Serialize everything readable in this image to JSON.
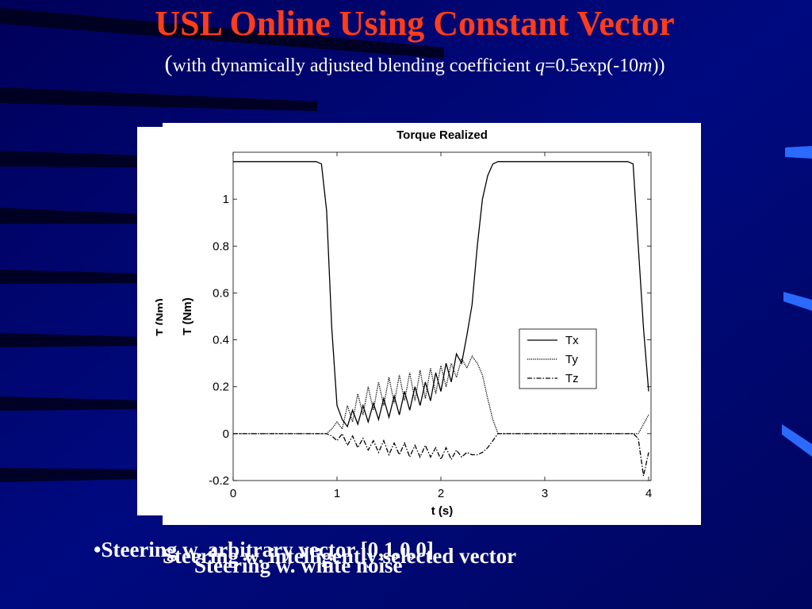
{
  "title": "USL Online Using Constant Vector",
  "subtitle": {
    "parts": [
      "(",
      "with dynamically adjusted blending coefficient ",
      "q",
      "=0.5exp(-10",
      "m",
      "))"
    ]
  },
  "bullets": [
    "•Steering w. arbitrary vector [0,1,0,0]",
    "Steering w. intelligently selected vector",
    "Steering w. white noise"
  ],
  "chart_data": {
    "type": "line",
    "title": "Torque Realized",
    "x_label": "t (s)",
    "y_label": "T (Nm)",
    "x": [
      0,
      0.5,
      0.8,
      0.85,
      0.9,
      0.95,
      1.0,
      1.05,
      1.1,
      1.15,
      1.2,
      1.25,
      1.3,
      1.35,
      1.4,
      1.45,
      1.5,
      1.55,
      1.6,
      1.65,
      1.7,
      1.75,
      1.8,
      1.85,
      1.9,
      1.95,
      2.0,
      2.05,
      2.1,
      2.15,
      2.2,
      2.25,
      2.3,
      2.35,
      2.4,
      2.45,
      2.5,
      2.55,
      2.6,
      3.0,
      3.5,
      3.8,
      3.85,
      3.9,
      3.95,
      4.0
    ],
    "series": [
      {
        "name": "Tx",
        "color": "#000000",
        "line_style": "solid",
        "values": [
          1.16,
          1.16,
          1.16,
          1.15,
          0.95,
          0.45,
          0.12,
          0.06,
          0.03,
          0.1,
          0.04,
          0.12,
          0.05,
          0.13,
          0.06,
          0.15,
          0.07,
          0.16,
          0.08,
          0.18,
          0.1,
          0.2,
          0.12,
          0.22,
          0.14,
          0.26,
          0.18,
          0.3,
          0.22,
          0.34,
          0.3,
          0.42,
          0.55,
          0.8,
          1.0,
          1.1,
          1.15,
          1.16,
          1.16,
          1.16,
          1.16,
          1.16,
          1.15,
          0.8,
          0.45,
          0.18
        ]
      },
      {
        "name": "Ty",
        "color": "#000000",
        "line_style": "dotted",
        "values": [
          0,
          0,
          0,
          0,
          0,
          0.02,
          0.05,
          0.02,
          0.12,
          0.05,
          0.17,
          0.08,
          0.2,
          0.1,
          0.22,
          0.12,
          0.24,
          0.13,
          0.25,
          0.14,
          0.26,
          0.14,
          0.27,
          0.15,
          0.28,
          0.17,
          0.29,
          0.2,
          0.3,
          0.24,
          0.32,
          0.28,
          0.33,
          0.3,
          0.25,
          0.15,
          0.06,
          0,
          0,
          0,
          0,
          0,
          0,
          0,
          0.04,
          0.08
        ]
      },
      {
        "name": "Tz",
        "color": "#000000",
        "line_style": "dashdot",
        "values": [
          0,
          0,
          0,
          0,
          0,
          -0.01,
          -0.03,
          0,
          -0.05,
          -0.01,
          -0.06,
          -0.02,
          -0.07,
          -0.03,
          -0.08,
          -0.03,
          -0.09,
          -0.04,
          -0.09,
          -0.04,
          -0.1,
          -0.05,
          -0.1,
          -0.05,
          -0.1,
          -0.06,
          -0.11,
          -0.06,
          -0.11,
          -0.07,
          -0.1,
          -0.08,
          -0.09,
          -0.09,
          -0.08,
          -0.06,
          -0.03,
          0,
          0,
          0,
          0,
          0,
          0,
          -0.02,
          -0.18,
          -0.08
        ]
      }
    ],
    "xlim": [
      0,
      4
    ],
    "ylim": [
      -0.2,
      1.2
    ],
    "xticks": [
      0,
      1,
      2,
      3,
      4
    ],
    "yticks": [
      -0.2,
      0,
      0.2,
      0.4,
      0.6,
      0.8,
      1
    ],
    "grid": false,
    "legend": "right"
  }
}
